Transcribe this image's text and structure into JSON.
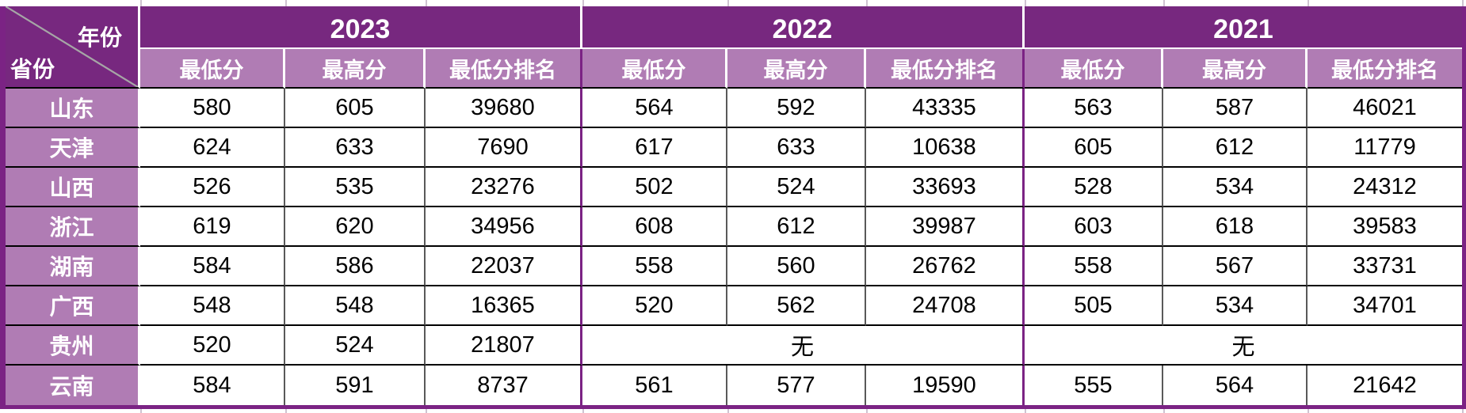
{
  "colors": {
    "header_dark": "#77287F",
    "header_light": "#B07CB4",
    "border_purple": "#7B2384",
    "grid_line": "#595959"
  },
  "chart_data": {
    "type": "table",
    "corner": {
      "top_right_label": "年份",
      "bottom_left_label": "省份"
    },
    "year_groups": [
      {
        "label": "2023",
        "columns": [
          "最低分",
          "最高分",
          "最低分排名"
        ]
      },
      {
        "label": "2022",
        "columns": [
          "最低分",
          "最高分",
          "最低分排名"
        ]
      },
      {
        "label": "2021",
        "columns": [
          "最低分",
          "最高分",
          "最低分排名"
        ]
      }
    ],
    "rows": [
      {
        "province": "山东",
        "cells": [
          {
            "t": "580"
          },
          {
            "t": "605"
          },
          {
            "t": "39680"
          },
          {
            "t": "564"
          },
          {
            "t": "592"
          },
          {
            "t": "43335"
          },
          {
            "t": "563"
          },
          {
            "t": "587"
          },
          {
            "t": "46021"
          }
        ]
      },
      {
        "province": "天津",
        "cells": [
          {
            "t": "624"
          },
          {
            "t": "633"
          },
          {
            "t": "7690"
          },
          {
            "t": "617"
          },
          {
            "t": "633"
          },
          {
            "t": "10638"
          },
          {
            "t": "605"
          },
          {
            "t": "612"
          },
          {
            "t": "11779"
          }
        ]
      },
      {
        "province": "山西",
        "cells": [
          {
            "t": "526"
          },
          {
            "t": "535"
          },
          {
            "t": "23276"
          },
          {
            "t": "502"
          },
          {
            "t": "524"
          },
          {
            "t": "33693"
          },
          {
            "t": "528"
          },
          {
            "t": "534"
          },
          {
            "t": "24312"
          }
        ]
      },
      {
        "province": "浙江",
        "cells": [
          {
            "t": "619"
          },
          {
            "t": "620"
          },
          {
            "t": "34956"
          },
          {
            "t": "608"
          },
          {
            "t": "612"
          },
          {
            "t": "39987"
          },
          {
            "t": "603"
          },
          {
            "t": "618"
          },
          {
            "t": "39583"
          }
        ]
      },
      {
        "province": "湖南",
        "cells": [
          {
            "t": "584"
          },
          {
            "t": "586"
          },
          {
            "t": "22037"
          },
          {
            "t": "558"
          },
          {
            "t": "560"
          },
          {
            "t": "26762"
          },
          {
            "t": "558"
          },
          {
            "t": "567"
          },
          {
            "t": "33731"
          }
        ]
      },
      {
        "province": "广西",
        "cells": [
          {
            "t": "548"
          },
          {
            "t": "548"
          },
          {
            "t": "16365"
          },
          {
            "t": "520"
          },
          {
            "t": "562"
          },
          {
            "t": "24708"
          },
          {
            "t": "505"
          },
          {
            "t": "534"
          },
          {
            "t": "34701"
          }
        ]
      },
      {
        "province": "贵州",
        "cells": [
          {
            "t": "520"
          },
          {
            "t": "524"
          },
          {
            "t": "21807"
          },
          {
            "t": "无",
            "span": 3
          },
          {
            "t": "无",
            "span": 3
          }
        ]
      },
      {
        "province": "云南",
        "cells": [
          {
            "t": "584"
          },
          {
            "t": "591"
          },
          {
            "t": "8737"
          },
          {
            "t": "561"
          },
          {
            "t": "577"
          },
          {
            "t": "19590"
          },
          {
            "t": "555"
          },
          {
            "t": "564"
          },
          {
            "t": "21642"
          }
        ]
      }
    ]
  }
}
